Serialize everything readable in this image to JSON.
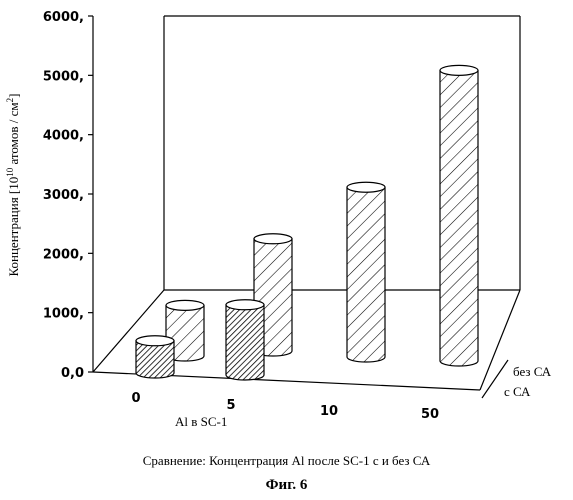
{
  "chart_data": {
    "type": "bar",
    "title": "",
    "ylabel": "Концентрация [10^10 атомов / см^2]",
    "ylabel_parts": {
      "base": "Концентрация [10",
      "exp1": "10",
      "mid": " атомов / см",
      "exp2": "2",
      "end": "]"
    },
    "xlabel": "Al в SC-1",
    "yticks": [
      "0,0",
      "1000,",
      "2000,",
      "3000,",
      "4000,",
      "5000,",
      "6000,"
    ],
    "ylim": [
      0,
      6000
    ],
    "categories": [
      "0",
      "5",
      "10",
      "50"
    ],
    "series": [
      {
        "name": "без СА",
        "values": [
          880,
          1950,
          2950,
          5050
        ],
        "fill": "diagonal-hatch"
      },
      {
        "name": "с СА",
        "values": [
          560,
          1220,
          null,
          null
        ],
        "fill": "dense-hatch"
      }
    ],
    "depth_labels": [
      "без СА",
      "с СА"
    ]
  },
  "caption": "Сравнение: Концентрация Al после SC-1 с и без СА",
  "figure_label": "Фиг. 6"
}
